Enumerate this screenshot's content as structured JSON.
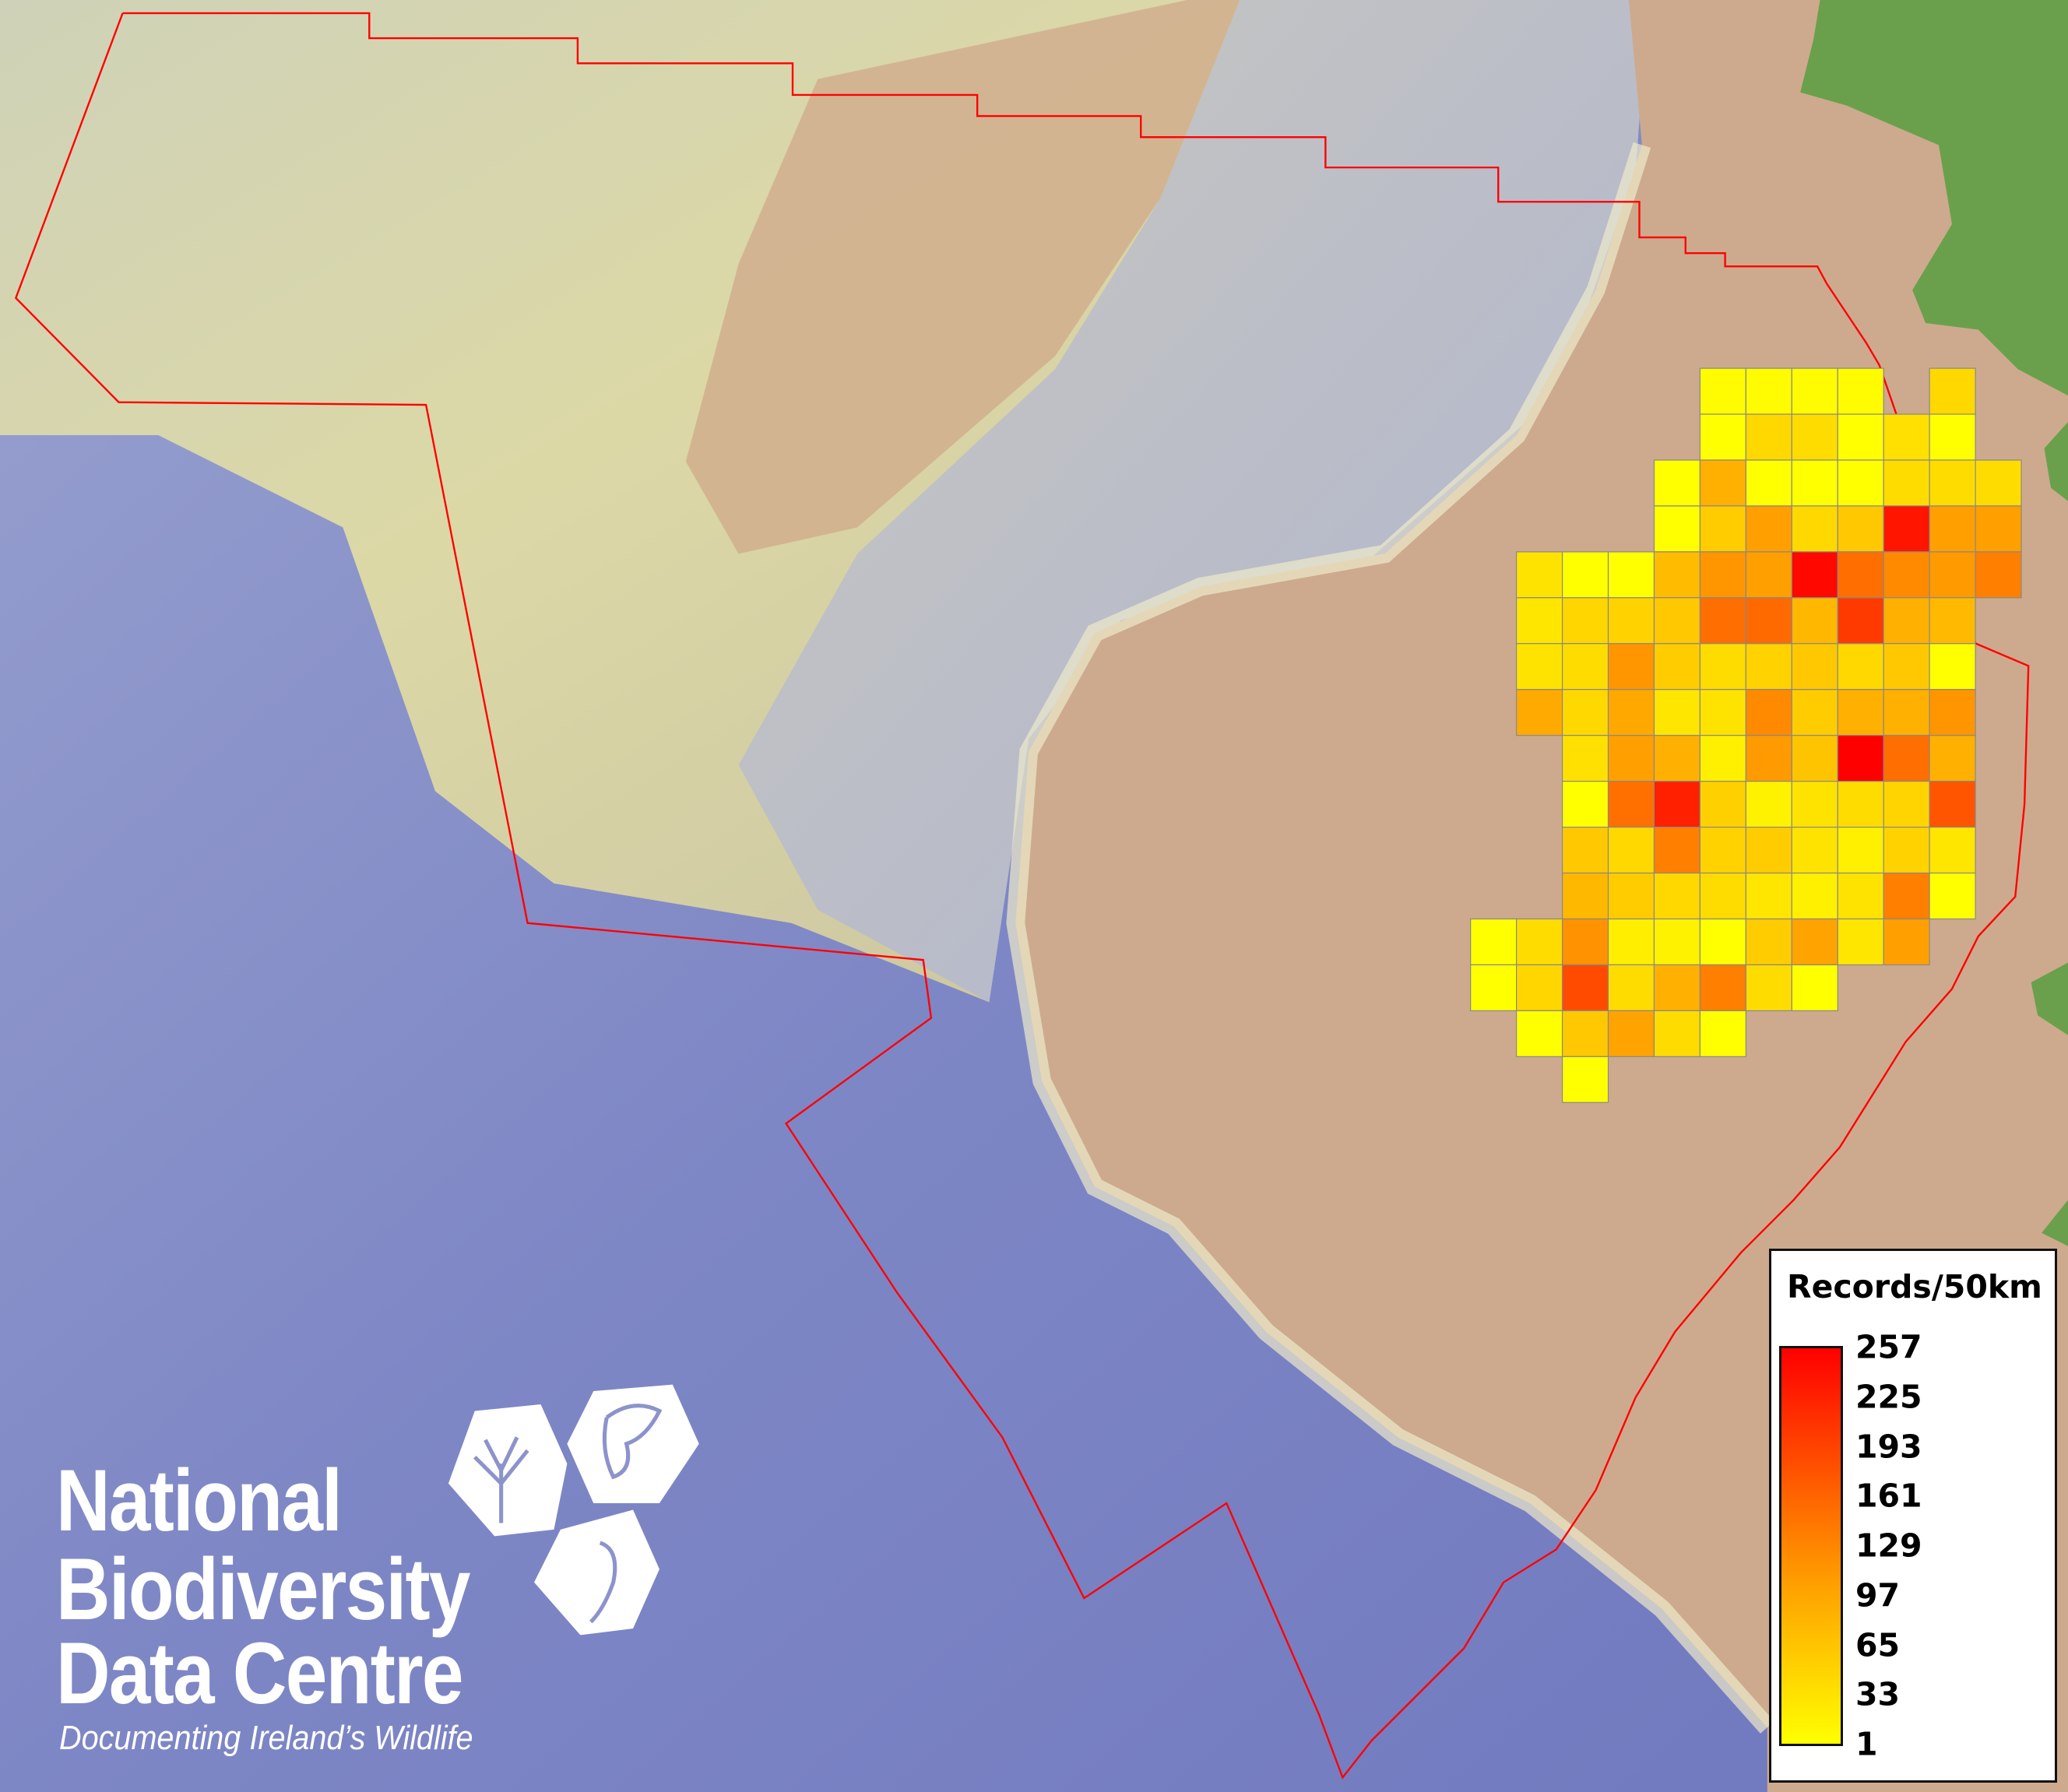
{
  "legend": {
    "title": "Records/50km",
    "labels": [
      "257",
      "225",
      "193",
      "161",
      "129",
      "97",
      "65",
      "33",
      "1"
    ]
  },
  "logo": {
    "line1": "National",
    "line2": "Biodiversity",
    "line3": "Data Centre",
    "tagline": "Documenting Ireland’s Wildlife"
  },
  "colors": {
    "low": "#ffff00",
    "high": "#ff0000",
    "boundary": "#ff0000",
    "grid_stroke": "#888888",
    "ocean": "#7f88c6",
    "land": "#cdaa8e"
  },
  "chart_data": {
    "type": "heatmap",
    "title": "Records/50km",
    "scale": {
      "min": 1,
      "max": 257
    },
    "grid": [
      [
        null,
        null,
        null,
        null,
        null,
        5,
        5,
        5,
        5,
        null,
        40,
        null
      ],
      [
        null,
        null,
        null,
        null,
        null,
        1,
        40,
        36,
        1,
        32,
        1,
        null
      ],
      [
        null,
        null,
        null,
        null,
        1,
        80,
        1,
        1,
        1,
        36,
        36,
        36
      ],
      [
        null,
        null,
        null,
        null,
        1,
        52,
        97,
        40,
        56,
        236,
        97,
        97
      ],
      [
        null,
        29,
        1,
        1,
        69,
        106,
        97,
        249,
        147,
        118,
        102,
        130
      ],
      [
        null,
        26,
        42,
        46,
        56,
        147,
        151,
        73,
        199,
        80,
        70,
        null
      ],
      [
        null,
        29,
        36,
        106,
        52,
        36,
        46,
        56,
        40,
        56,
        1,
        null
      ],
      [
        null,
        86,
        40,
        88,
        26,
        29,
        118,
        52,
        80,
        80,
        106,
        null
      ],
      [
        null,
        null,
        32,
        96,
        80,
        16,
        102,
        60,
        257,
        147,
        80,
        null
      ],
      [
        null,
        null,
        1,
        145,
        225,
        48,
        14,
        29,
        36,
        44,
        172,
        null
      ],
      [
        null,
        null,
        56,
        40,
        130,
        46,
        52,
        29,
        16,
        46,
        26,
        null
      ],
      [
        null,
        null,
        72,
        52,
        40,
        36,
        26,
        16,
        29,
        130,
        1,
        null
      ],
      [
        1,
        36,
        110,
        18,
        14,
        1,
        52,
        93,
        26,
        96,
        null,
        null
      ],
      [
        1,
        42,
        182,
        36,
        80,
        130,
        36,
        1,
        null,
        null,
        null,
        null
      ],
      [
        null,
        1,
        56,
        93,
        36,
        1,
        null,
        null,
        null,
        null,
        null,
        null
      ],
      [
        null,
        null,
        1,
        null,
        null,
        null,
        null,
        null,
        null,
        null,
        null,
        null
      ]
    ]
  }
}
